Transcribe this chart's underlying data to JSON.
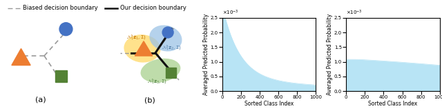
{
  "fig_width": 6.4,
  "fig_height": 1.61,
  "dpi": 100,
  "legend_items": [
    {
      "label": "Biased decision boundary",
      "color": "#999999",
      "linestyle": "dashed"
    },
    {
      "label": "Our decision boundary",
      "color": "#111111",
      "linestyle": "solid"
    }
  ],
  "plot_c": {
    "xlabel": "Sorted Class Index",
    "ylabel": "Averaged Predicted Probability",
    "xlim": [
      0,
      1000
    ],
    "ylim": [
      0,
      0.0025
    ],
    "fill_color": "#b8e4f5",
    "peak": 0.00245,
    "decay_rate": 5.5,
    "base": 5e-05
  },
  "plot_d": {
    "xlabel": "Sorted Class Index",
    "ylabel": "Averaged Predicted Probability",
    "xlim": [
      0,
      1000
    ],
    "ylim": [
      0,
      0.0025
    ],
    "fill_color": "#b8e4f5",
    "peak": 0.00108,
    "base": 0.00088
  },
  "shape_colors": {
    "circle": "#4472c4",
    "triangle": "#ed7d31",
    "square": "#548235",
    "ellipse_yellow": "#ffd966",
    "ellipse_blue": "#9dc3e6",
    "ellipse_green": "#a9d18e"
  },
  "panel_label_fontsize": 8,
  "axis_label_fontsize": 5.5,
  "tick_fontsize": 5.0
}
